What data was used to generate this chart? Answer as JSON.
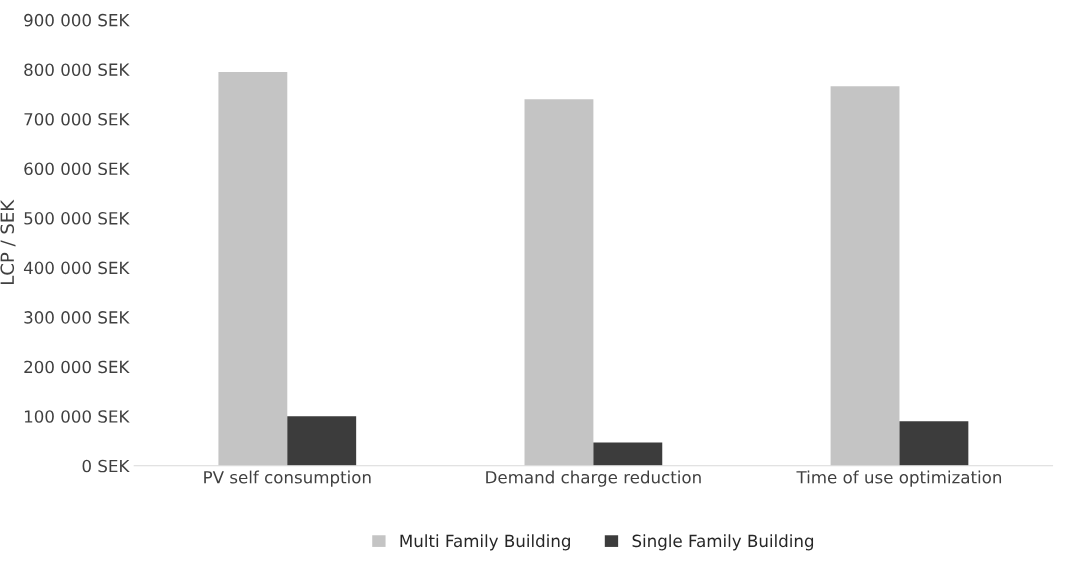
{
  "chart_data": {
    "type": "bar",
    "ylabel": "LCP / SEK",
    "categories": [
      "PV self consumption",
      "Demand charge reduction",
      "Time of use optimization"
    ],
    "series": [
      {
        "name": "Multi Family Building",
        "color": "#c4c4c4",
        "values": [
          795000,
          740000,
          766000
        ]
      },
      {
        "name": "Single Family Building",
        "color": "#3c3c3c",
        "values": [
          100000,
          47000,
          90000
        ]
      }
    ],
    "ylim": [
      0,
      900000
    ],
    "yticks": [
      {
        "value": 0,
        "label": "0 SEK"
      },
      {
        "value": 100000,
        "label": "100 000 SEK"
      },
      {
        "value": 200000,
        "label": "200 000 SEK"
      },
      {
        "value": 300000,
        "label": "300 000 SEK"
      },
      {
        "value": 400000,
        "label": "400 000 SEK"
      },
      {
        "value": 500000,
        "label": "500 000 SEK"
      },
      {
        "value": 600000,
        "label": "600 000 SEK"
      },
      {
        "value": 700000,
        "label": "700 000 SEK"
      },
      {
        "value": 800000,
        "label": "800 000 SEK"
      },
      {
        "value": 900000,
        "label": "900 000 SEK"
      }
    ],
    "grid": false,
    "legend": "bottom"
  }
}
